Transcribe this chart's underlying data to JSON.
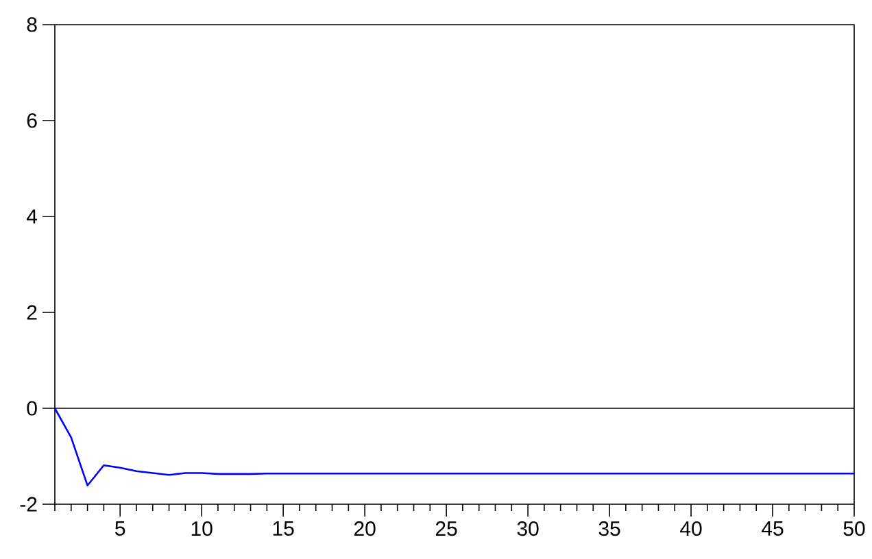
{
  "chart_data": {
    "type": "line",
    "x": [
      1,
      2,
      3,
      4,
      5,
      6,
      7,
      8,
      9,
      10,
      11,
      12,
      13,
      14,
      15,
      16,
      17,
      18,
      19,
      20,
      21,
      22,
      23,
      24,
      25,
      26,
      27,
      28,
      29,
      30,
      31,
      32,
      33,
      34,
      35,
      36,
      37,
      38,
      39,
      40,
      41,
      42,
      43,
      44,
      45,
      46,
      47,
      48,
      49,
      50
    ],
    "values": [
      0,
      -0.61,
      -1.61,
      -1.19,
      -1.24,
      -1.31,
      -1.35,
      -1.39,
      -1.35,
      -1.35,
      -1.37,
      -1.37,
      -1.37,
      -1.36,
      -1.36,
      -1.36,
      -1.36,
      -1.36,
      -1.36,
      -1.36,
      -1.36,
      -1.36,
      -1.36,
      -1.36,
      -1.36,
      -1.36,
      -1.36,
      -1.36,
      -1.36,
      -1.36,
      -1.36,
      -1.36,
      -1.36,
      -1.36,
      -1.36,
      -1.36,
      -1.36,
      -1.36,
      -1.36,
      -1.36,
      -1.36,
      -1.36,
      -1.36,
      -1.36,
      -1.36,
      -1.36,
      -1.36,
      -1.36,
      -1.36,
      -1.36
    ],
    "color": "#0000ff",
    "xlim": [
      1,
      50
    ],
    "ylim": [
      -2,
      8
    ],
    "xticks": [
      {
        "value": 1,
        "label": null
      },
      {
        "value": 2,
        "label": null
      },
      {
        "value": 3,
        "label": null
      },
      {
        "value": 4,
        "label": null
      },
      5,
      {
        "value": 6,
        "label": null
      },
      {
        "value": 7,
        "label": null
      },
      {
        "value": 8,
        "label": null
      },
      {
        "value": 9,
        "label": null
      },
      10,
      {
        "value": 11,
        "label": null
      },
      {
        "value": 12,
        "label": null
      },
      {
        "value": 13,
        "label": null
      },
      {
        "value": 14,
        "label": null
      },
      15,
      {
        "value": 16,
        "label": null
      },
      {
        "value": 17,
        "label": null
      },
      {
        "value": 18,
        "label": null
      },
      {
        "value": 19,
        "label": null
      },
      20,
      {
        "value": 21,
        "label": null
      },
      {
        "value": 22,
        "label": null
      },
      {
        "value": 23,
        "label": null
      },
      {
        "value": 24,
        "label": null
      },
      25,
      {
        "value": 26,
        "label": null
      },
      {
        "value": 27,
        "label": null
      },
      {
        "value": 28,
        "label": null
      },
      {
        "value": 29,
        "label": null
      },
      30,
      {
        "value": 31,
        "label": null
      },
      {
        "value": 32,
        "label": null
      },
      {
        "value": 33,
        "label": null
      },
      {
        "value": 34,
        "label": null
      },
      35,
      {
        "value": 36,
        "label": null
      },
      {
        "value": 37,
        "label": null
      },
      {
        "value": 38,
        "label": null
      },
      {
        "value": 39,
        "label": null
      },
      40,
      {
        "value": 41,
        "label": null
      },
      {
        "value": 42,
        "label": null
      },
      {
        "value": 43,
        "label": null
      },
      {
        "value": 44,
        "label": null
      },
      45,
      {
        "value": 46,
        "label": null
      },
      {
        "value": 47,
        "label": null
      },
      {
        "value": 48,
        "label": null
      },
      {
        "value": 49,
        "label": null
      },
      50
    ],
    "yticks": [
      -2,
      0,
      2,
      4,
      6,
      8
    ],
    "ref_lines": [
      {
        "axis": "y",
        "value": 0,
        "color": "#000000"
      }
    ]
  }
}
